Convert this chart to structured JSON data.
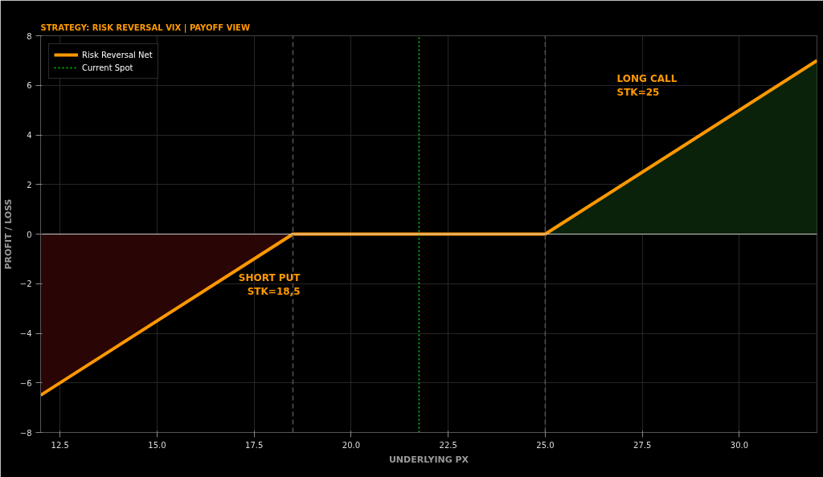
{
  "chart_data": {
    "type": "line",
    "title": "STRATEGY: RISK REVERSAL VIX | PAYOFF VIEW",
    "xlabel": "UNDERLYING PX",
    "ylabel": "PROFIT / LOSS",
    "series": [
      {
        "type": "area",
        "x": [
          12,
          18.5
        ],
        "values": [
          -6.5,
          0
        ],
        "color": "#2a0505"
      },
      {
        "type": "area",
        "x": [
          25,
          32
        ],
        "values": [
          0,
          7
        ],
        "color": "#0a220a"
      },
      {
        "name": "Risk Reversal Net",
        "color": "#ff9900",
        "x": [
          12,
          18.5,
          25,
          32
        ],
        "values": [
          -6.5,
          0,
          0,
          7
        ]
      },
      {
        "name": "Current Spot",
        "color": "#00dd00",
        "line_style": "dotted",
        "x": [
          21.75,
          21.75
        ],
        "values": [
          -8,
          8
        ]
      }
    ],
    "ref_lines": [
      {
        "axis": "y",
        "value": 0,
        "color": "#cccccc",
        "line_style": "solid"
      },
      {
        "axis": "x",
        "value": 18.5,
        "color": "#555555",
        "line_style": "dashed"
      },
      {
        "axis": "x",
        "value": 25,
        "color": "#555555",
        "line_style": "dashed"
      }
    ],
    "annotations": [
      "SHORT PUT\nSTK=18,5",
      "LONG CALL\nSTK=25"
    ],
    "xlim": [
      12,
      32
    ],
    "ylim": [
      -8,
      8
    ],
    "xticks": [
      12.5,
      {
        "value": 15,
        "label": "15.0"
      },
      17.5,
      {
        "value": 20,
        "label": "20.0"
      },
      22.5,
      {
        "value": 25,
        "label": "25.0"
      },
      27.5,
      {
        "value": 30,
        "label": "30.0"
      }
    ],
    "yticks": [
      -8,
      -6,
      -4,
      -2,
      0,
      2,
      4,
      6,
      8
    ],
    "grid": true,
    "legend": "top left"
  }
}
